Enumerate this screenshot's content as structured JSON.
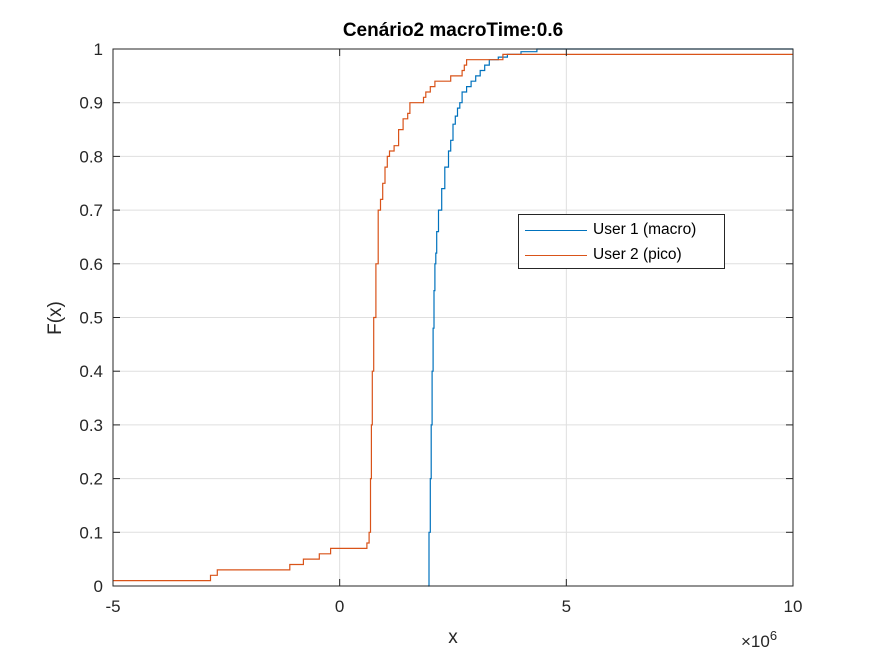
{
  "chart_data": {
    "type": "line",
    "title": "Cenário2 macroTime:0.6",
    "xlabel": "x",
    "ylabel": "F(x)",
    "x_exponent_base": "×10",
    "x_exponent_power": "6",
    "xlim": [
      -5,
      10
    ],
    "ylim": [
      0,
      1
    ],
    "xticks": [
      -5,
      0,
      5,
      10
    ],
    "xtick_labels": [
      "-5",
      "0",
      "5",
      "10"
    ],
    "yticks": [
      0,
      0.1,
      0.2,
      0.3,
      0.4,
      0.5,
      0.6,
      0.7,
      0.8,
      0.9,
      1
    ],
    "ytick_labels": [
      "0",
      "0.1",
      "0.2",
      "0.3",
      "0.4",
      "0.5",
      "0.6",
      "0.7",
      "0.8",
      "0.9",
      "1"
    ],
    "grid": true,
    "legend_position": "inside-right",
    "series": [
      {
        "name": "User 1 (macro)",
        "color": "#0072BD",
        "x": [
          1.95,
          1.97,
          2.0,
          2.02,
          2.04,
          2.06,
          2.08,
          2.1,
          2.12,
          2.14,
          2.18,
          2.25,
          2.32,
          2.4,
          2.45,
          2.5,
          2.55,
          2.6,
          2.65,
          2.7,
          2.8,
          2.9,
          3.0,
          3.1,
          3.2,
          3.3,
          3.5,
          3.7,
          4.0,
          4.35,
          10
        ],
        "y": [
          0.0,
          0.1,
          0.2,
          0.3,
          0.4,
          0.48,
          0.55,
          0.6,
          0.62,
          0.66,
          0.7,
          0.74,
          0.78,
          0.81,
          0.83,
          0.86,
          0.875,
          0.89,
          0.9,
          0.92,
          0.93,
          0.94,
          0.95,
          0.96,
          0.97,
          0.98,
          0.985,
          0.99,
          0.995,
          1.0,
          1.0
        ]
      },
      {
        "name": "User 2 (pico)",
        "color": "#D95319",
        "x": [
          -5.0,
          -2.85,
          -2.7,
          -1.1,
          -0.8,
          -0.5,
          -0.45,
          -0.2,
          0.05,
          0.3,
          0.6,
          0.65,
          0.68,
          0.7,
          0.72,
          0.75,
          0.8,
          0.85,
          0.9,
          0.95,
          1.0,
          1.05,
          1.1,
          1.2,
          1.3,
          1.4,
          1.5,
          1.55,
          1.8,
          1.85,
          1.9,
          2.0,
          2.1,
          2.4,
          2.45,
          2.7,
          2.75,
          2.8,
          3.6,
          4.0,
          10.0
        ],
        "y": [
          0.01,
          0.02,
          0.03,
          0.04,
          0.05,
          0.05,
          0.06,
          0.07,
          0.07,
          0.07,
          0.08,
          0.1,
          0.2,
          0.3,
          0.4,
          0.5,
          0.6,
          0.7,
          0.72,
          0.75,
          0.78,
          0.8,
          0.81,
          0.82,
          0.85,
          0.87,
          0.88,
          0.9,
          0.9,
          0.91,
          0.92,
          0.93,
          0.94,
          0.94,
          0.95,
          0.96,
          0.97,
          0.98,
          0.99,
          0.99,
          0.99
        ]
      }
    ]
  }
}
